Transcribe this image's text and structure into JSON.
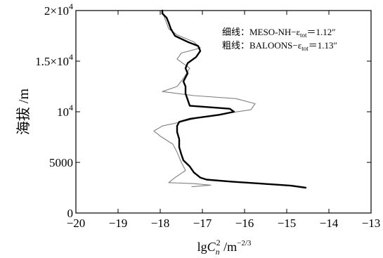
{
  "chart_data": {
    "type": "line",
    "xlabel": {
      "base": "lgC",
      "sub": "n",
      "sup": "2",
      "unit": "/m",
      "unit_sup": "−2/3"
    },
    "ylabel": "海拔 /m",
    "xlim": [
      -20,
      -13
    ],
    "ylim": [
      0,
      20000
    ],
    "x_ticks": [
      {
        "value": -20,
        "label": "−20"
      },
      {
        "value": -19,
        "label": "−19"
      },
      {
        "value": -18,
        "label": "−18"
      },
      {
        "value": -17,
        "label": "−17"
      },
      {
        "value": -16,
        "label": "−16"
      },
      {
        "value": -15,
        "label": "−15"
      },
      {
        "value": -14,
        "label": "−14"
      },
      {
        "value": -13,
        "label": "−13"
      }
    ],
    "y_ticks": [
      {
        "value": 0,
        "label": "0"
      },
      {
        "value": 5000,
        "label": "5000"
      },
      {
        "value": 10000,
        "mant": "10",
        "exp": "4"
      },
      {
        "value": 15000,
        "mant": "1.5×10",
        "exp": "4"
      },
      {
        "value": 20000,
        "mant": "2×10",
        "exp": "4"
      }
    ],
    "grid": false,
    "legend_position": "top-right",
    "annotations": [
      {
        "prefix": "细线：MESO-NH−ε",
        "sub": "tot",
        "suffix": "＝1.12″"
      },
      {
        "prefix": "粗线：BALOONS−ε",
        "sub": "tot",
        "suffix": "＝1.13″"
      }
    ],
    "series": [
      {
        "style": "thin",
        "color": "#808080",
        "points": [
          [
            -17.25,
            2600
          ],
          [
            -16.8,
            2750
          ],
          [
            -17.2,
            2900
          ],
          [
            -17.8,
            3000
          ],
          [
            -17.65,
            3500
          ],
          [
            -17.4,
            4200
          ],
          [
            -17.5,
            5000
          ],
          [
            -17.6,
            6000
          ],
          [
            -17.7,
            6800
          ],
          [
            -18.0,
            7600
          ],
          [
            -18.15,
            8100
          ],
          [
            -17.95,
            8600
          ],
          [
            -17.5,
            9000
          ],
          [
            -17.1,
            9400
          ],
          [
            -16.5,
            9800
          ],
          [
            -15.85,
            10200
          ],
          [
            -15.75,
            10800
          ],
          [
            -16.2,
            11300
          ],
          [
            -17.2,
            11600
          ],
          [
            -17.95,
            12000
          ],
          [
            -17.6,
            12500
          ],
          [
            -17.45,
            13300
          ],
          [
            -17.3,
            14300
          ],
          [
            -17.6,
            15200
          ],
          [
            -17.5,
            15800
          ],
          [
            -17.05,
            16300
          ],
          [
            -17.2,
            16900
          ],
          [
            -17.6,
            17600
          ],
          [
            -17.8,
            18200
          ],
          [
            -17.85,
            18800
          ],
          [
            -17.9,
            19300
          ],
          [
            -17.95,
            20000
          ]
        ]
      },
      {
        "style": "thick",
        "color": "#000000",
        "points": [
          [
            -14.55,
            2500
          ],
          [
            -14.9,
            2700
          ],
          [
            -15.6,
            2900
          ],
          [
            -16.3,
            3100
          ],
          [
            -16.9,
            3300
          ],
          [
            -17.05,
            3500
          ],
          [
            -17.2,
            4000
          ],
          [
            -17.3,
            4600
          ],
          [
            -17.45,
            5200
          ],
          [
            -17.5,
            5800
          ],
          [
            -17.55,
            6500
          ],
          [
            -17.55,
            7300
          ],
          [
            -17.6,
            8000
          ],
          [
            -17.6,
            8600
          ],
          [
            -17.55,
            9000
          ],
          [
            -17.3,
            9300
          ],
          [
            -16.6,
            9700
          ],
          [
            -16.25,
            10000
          ],
          [
            -16.35,
            10300
          ],
          [
            -17.3,
            10600
          ],
          [
            -17.35,
            11200
          ],
          [
            -17.4,
            11800
          ],
          [
            -17.4,
            12500
          ],
          [
            -17.45,
            13000
          ],
          [
            -17.35,
            13800
          ],
          [
            -17.4,
            14300
          ],
          [
            -17.35,
            14800
          ],
          [
            -17.15,
            15400
          ],
          [
            -17.05,
            16000
          ],
          [
            -17.1,
            16500
          ],
          [
            -17.35,
            16900
          ],
          [
            -17.65,
            17500
          ],
          [
            -17.75,
            18200
          ],
          [
            -17.8,
            18800
          ],
          [
            -17.85,
            19300
          ],
          [
            -17.95,
            19700
          ],
          [
            -17.95,
            20000
          ]
        ]
      }
    ]
  }
}
